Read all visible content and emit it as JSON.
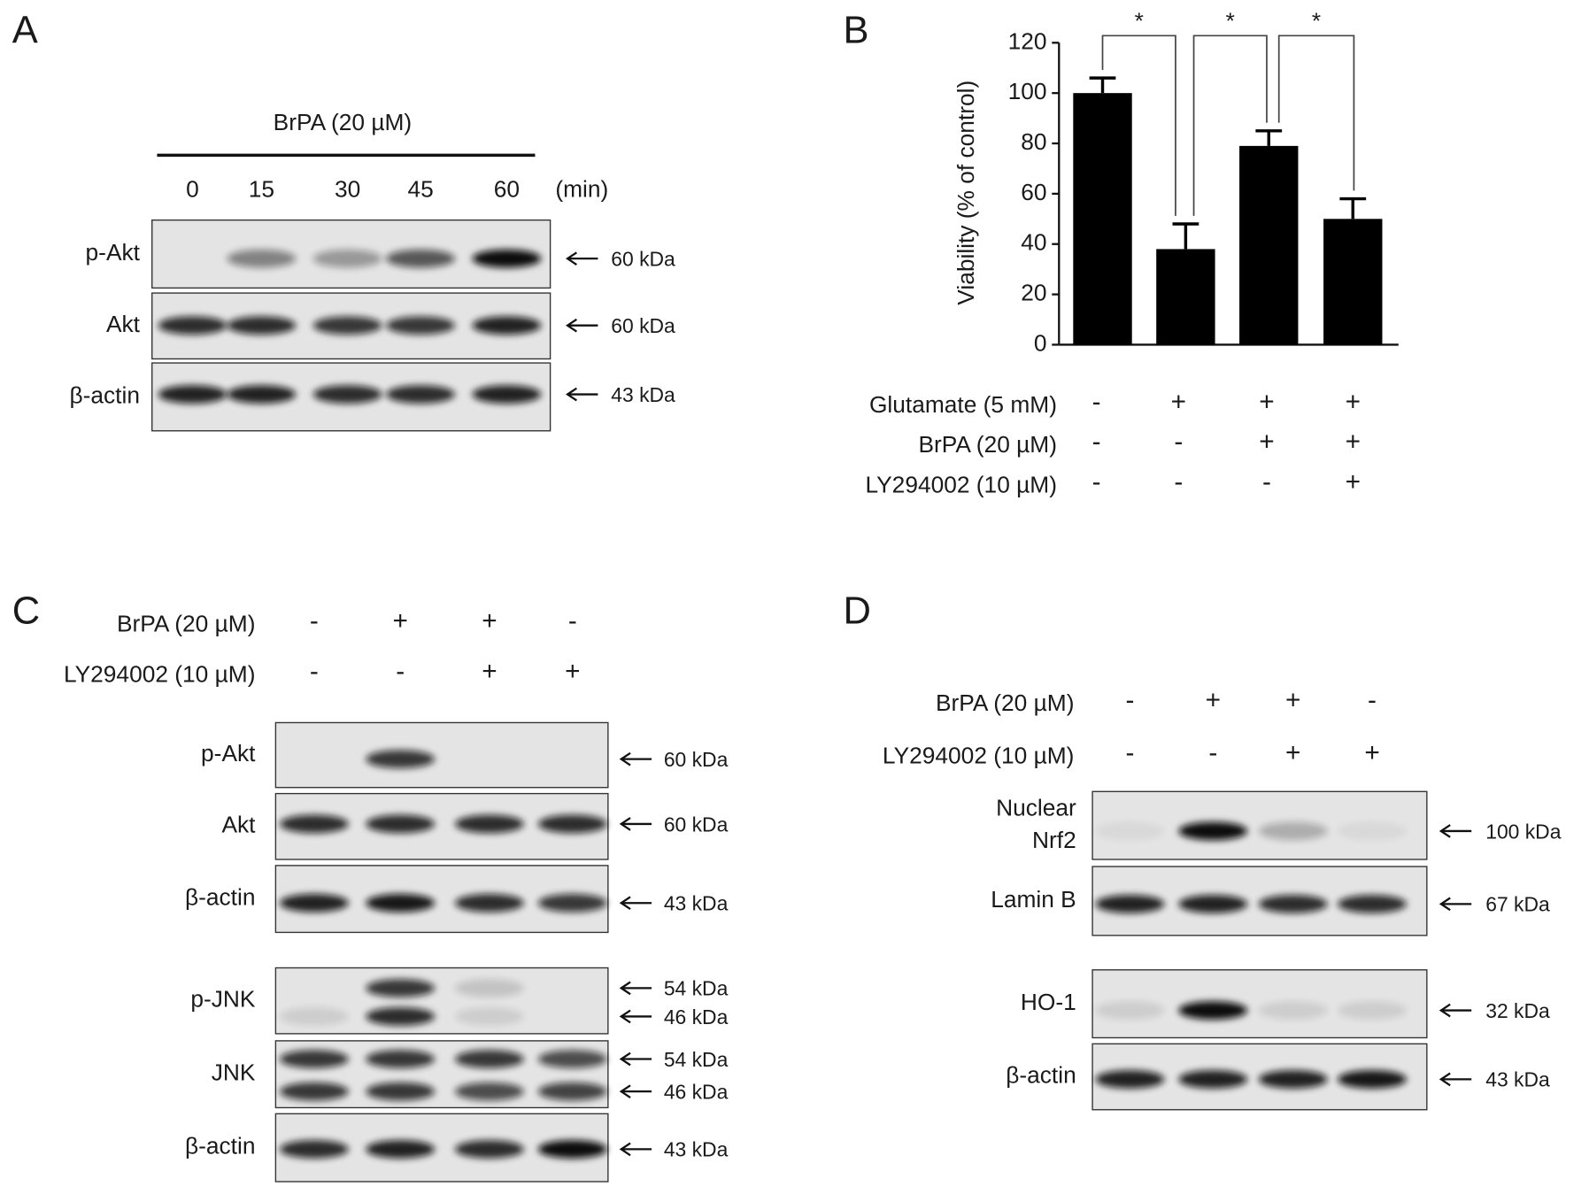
{
  "panels": {
    "A": {
      "label": "A",
      "treatment": "BrPA (20 µM)",
      "lanes": [
        "0",
        "15",
        "30",
        "45",
        "60"
      ],
      "lane_unit": "(min)",
      "blots": [
        {
          "label": [
            "p-Akt"
          ],
          "sizes": [
            "60 kDa"
          ]
        },
        {
          "label": [
            "Akt"
          ],
          "sizes": [
            "60 kDa"
          ]
        },
        {
          "label": [
            "β-actin"
          ],
          "sizes": [
            "43 kDa"
          ]
        }
      ]
    },
    "C": {
      "label": "C",
      "treatments": [
        {
          "name": "BrPA (20 µM)",
          "marks": [
            "-",
            "+",
            "+",
            "-"
          ]
        },
        {
          "name": "LY294002 (10 µM)",
          "marks": [
            "-",
            "-",
            "+",
            "+"
          ]
        }
      ],
      "blots": [
        {
          "label": [
            "p-Akt"
          ],
          "sizes": [
            "60 kDa"
          ]
        },
        {
          "label": [
            "Akt"
          ],
          "sizes": [
            "60 kDa"
          ]
        },
        {
          "label": [
            "β-actin"
          ],
          "sizes": [
            "43 kDa"
          ]
        },
        {
          "label": [
            "p-JNK"
          ],
          "sizes": [
            "54 kDa",
            "46 kDa"
          ]
        },
        {
          "label": [
            "JNK"
          ],
          "sizes": [
            "54 kDa",
            "46 kDa"
          ]
        },
        {
          "label": [
            "β-actin"
          ],
          "sizes": [
            "43 kDa"
          ]
        }
      ]
    },
    "D": {
      "label": "D",
      "treatments": [
        {
          "name": "BrPA (20 µM)",
          "marks": [
            "-",
            "+",
            "+",
            "-"
          ]
        },
        {
          "name": "LY294002 (10 µM)",
          "marks": [
            "-",
            "-",
            "+",
            "+"
          ]
        }
      ],
      "blots": [
        {
          "label": [
            "Nuclear",
            "Nrf2"
          ],
          "sizes": [
            "100 kDa"
          ]
        },
        {
          "label": [
            "Lamin B"
          ],
          "sizes": [
            "67 kDa"
          ]
        },
        {
          "label": [
            "HO-1"
          ],
          "sizes": [
            "32 kDa"
          ]
        },
        {
          "label": [
            "β-actin"
          ],
          "sizes": [
            "43 kDa"
          ]
        }
      ]
    }
  },
  "chart_data": {
    "type": "bar",
    "panel_label": "B",
    "y_label": "Viability (% of control)",
    "values": [
      100,
      38,
      79,
      50
    ],
    "errors": [
      6,
      10,
      6,
      8
    ],
    "color": "#000000",
    "ylim": [
      0,
      120
    ],
    "yticks": [
      0,
      20,
      40,
      60,
      80,
      100,
      120
    ],
    "annotations": [
      "*",
      "*",
      "*"
    ],
    "treatments": [
      {
        "name": "Glutamate (5 mM)",
        "marks": [
          "-",
          "+",
          "+",
          "+"
        ]
      },
      {
        "name": "BrPA (20 µM)",
        "marks": [
          "-",
          "-",
          "+",
          "+"
        ]
      },
      {
        "name": "LY294002 (10 µM)",
        "marks": [
          "-",
          "-",
          "-",
          "+"
        ]
      }
    ]
  }
}
